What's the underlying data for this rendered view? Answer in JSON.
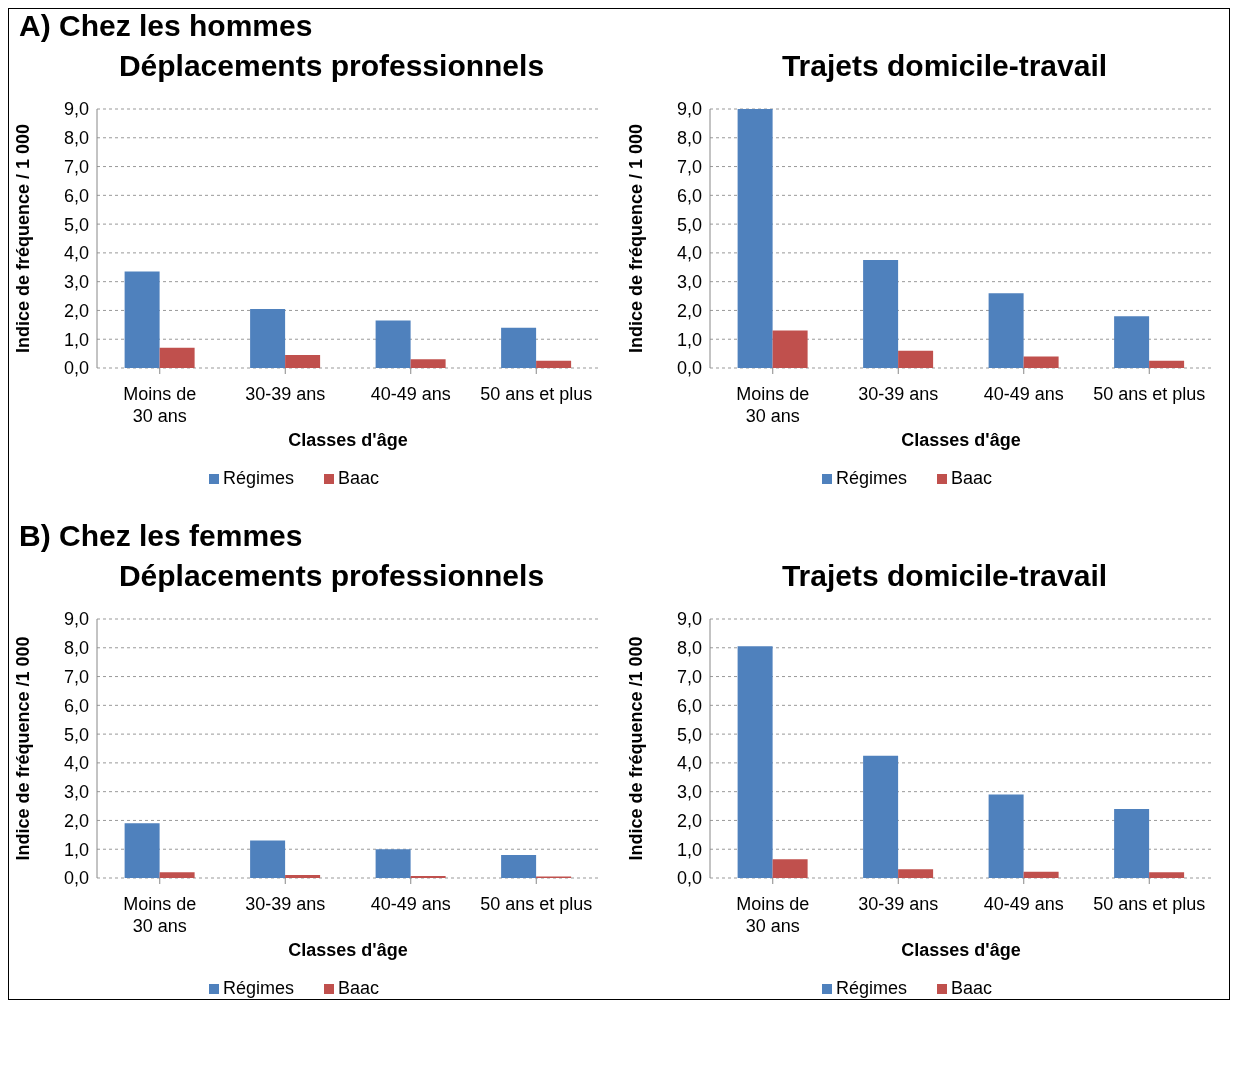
{
  "chart_data": [
    {
      "type": "bar",
      "annotations": [
        "A) Chez les hommes"
      ],
      "title": "Déplacements professionnels",
      "xlabel": "Classes d'âge",
      "ylabel": "Indice de fréquence / 1 000",
      "categories": [
        "Moins de 30 ans",
        "30-39 ans",
        "40-49 ans",
        "50 ans et plus"
      ],
      "series": [
        {
          "name": "Régimes",
          "color": "#4f81bd",
          "values": [
            3.35,
            2.05,
            1.65,
            1.4
          ]
        },
        {
          "name": "Baac",
          "color": "#c0504d",
          "values": [
            0.7,
            0.45,
            0.3,
            0.25
          ]
        }
      ],
      "ylim": [
        0,
        9
      ],
      "yticks": [
        {
          "value": 0,
          "label": "0,0"
        },
        {
          "value": 1,
          "label": "1,0"
        },
        {
          "value": 2,
          "label": "2,0"
        },
        {
          "value": 3,
          "label": "3,0"
        },
        {
          "value": 4,
          "label": "4,0"
        },
        {
          "value": 5,
          "label": "5,0"
        },
        {
          "value": 6,
          "label": "6,0"
        },
        {
          "value": 7,
          "label": "7,0"
        },
        {
          "value": 8,
          "label": "8,0"
        },
        {
          "value": 9,
          "label": "9,0"
        }
      ],
      "grid": "y",
      "legend": "bottom"
    },
    {
      "type": "bar",
      "title": "Trajets domicile-travail",
      "xlabel": "Classes d'âge",
      "ylabel": "Indice de fréquence / 1 000",
      "categories": [
        "Moins de 30 ans",
        "30-39 ans",
        "40-49 ans",
        "50 ans et plus"
      ],
      "series": [
        {
          "name": "Régimes",
          "color": "#4f81bd",
          "values": [
            9.0,
            3.75,
            2.6,
            1.8
          ]
        },
        {
          "name": "Baac",
          "color": "#c0504d",
          "values": [
            1.3,
            0.6,
            0.4,
            0.25
          ]
        }
      ],
      "ylim": [
        0,
        9
      ],
      "yticks": [
        {
          "value": 0,
          "label": "0,0"
        },
        {
          "value": 1,
          "label": "1,0"
        },
        {
          "value": 2,
          "label": "2,0"
        },
        {
          "value": 3,
          "label": "3,0"
        },
        {
          "value": 4,
          "label": "4,0"
        },
        {
          "value": 5,
          "label": "5,0"
        },
        {
          "value": 6,
          "label": "6,0"
        },
        {
          "value": 7,
          "label": "7,0"
        },
        {
          "value": 8,
          "label": "8,0"
        },
        {
          "value": 9,
          "label": "9,0"
        }
      ],
      "grid": "y",
      "legend": "bottom"
    },
    {
      "type": "bar",
      "annotations": [
        "B) Chez les femmes"
      ],
      "title": "Déplacements professionnels",
      "xlabel": "Classes d'âge",
      "ylabel": "Indice de fréquence /1 000",
      "categories": [
        "Moins de 30 ans",
        "30-39 ans",
        "40-49 ans",
        "50 ans et plus"
      ],
      "series": [
        {
          "name": "Régimes",
          "color": "#4f81bd",
          "values": [
            1.9,
            1.3,
            1.0,
            0.8
          ]
        },
        {
          "name": "Baac",
          "color": "#c0504d",
          "values": [
            0.2,
            0.1,
            0.07,
            0.05
          ]
        }
      ],
      "ylim": [
        0,
        9
      ],
      "yticks": [
        {
          "value": 0,
          "label": "0,0"
        },
        {
          "value": 1,
          "label": "1,0"
        },
        {
          "value": 2,
          "label": "2,0"
        },
        {
          "value": 3,
          "label": "3,0"
        },
        {
          "value": 4,
          "label": "4,0"
        },
        {
          "value": 5,
          "label": "5,0"
        },
        {
          "value": 6,
          "label": "6,0"
        },
        {
          "value": 7,
          "label": "7,0"
        },
        {
          "value": 8,
          "label": "8,0"
        },
        {
          "value": 9,
          "label": "9,0"
        }
      ],
      "grid": "y",
      "legend": "bottom"
    },
    {
      "type": "bar",
      "title": "Trajets domicile-travail",
      "xlabel": "Classes d'âge",
      "ylabel": "Indice de fréquence /1 000",
      "categories": [
        "Moins de 30 ans",
        "30-39 ans",
        "40-49 ans",
        "50 ans et plus"
      ],
      "series": [
        {
          "name": "Régimes",
          "color": "#4f81bd",
          "values": [
            8.05,
            4.25,
            2.9,
            2.4
          ]
        },
        {
          "name": "Baac",
          "color": "#c0504d",
          "values": [
            0.65,
            0.3,
            0.22,
            0.2
          ]
        }
      ],
      "ylim": [
        0,
        9
      ],
      "yticks": [
        {
          "value": 0,
          "label": "0,0"
        },
        {
          "value": 1,
          "label": "1,0"
        },
        {
          "value": 2,
          "label": "2,0"
        },
        {
          "value": 3,
          "label": "3,0"
        },
        {
          "value": 4,
          "label": "4,0"
        },
        {
          "value": 5,
          "label": "5,0"
        },
        {
          "value": 6,
          "label": "6,0"
        },
        {
          "value": 7,
          "label": "7,0"
        },
        {
          "value": 8,
          "label": "8,0"
        },
        {
          "value": 9,
          "label": "9,0"
        }
      ],
      "grid": "y",
      "legend": "bottom"
    }
  ]
}
